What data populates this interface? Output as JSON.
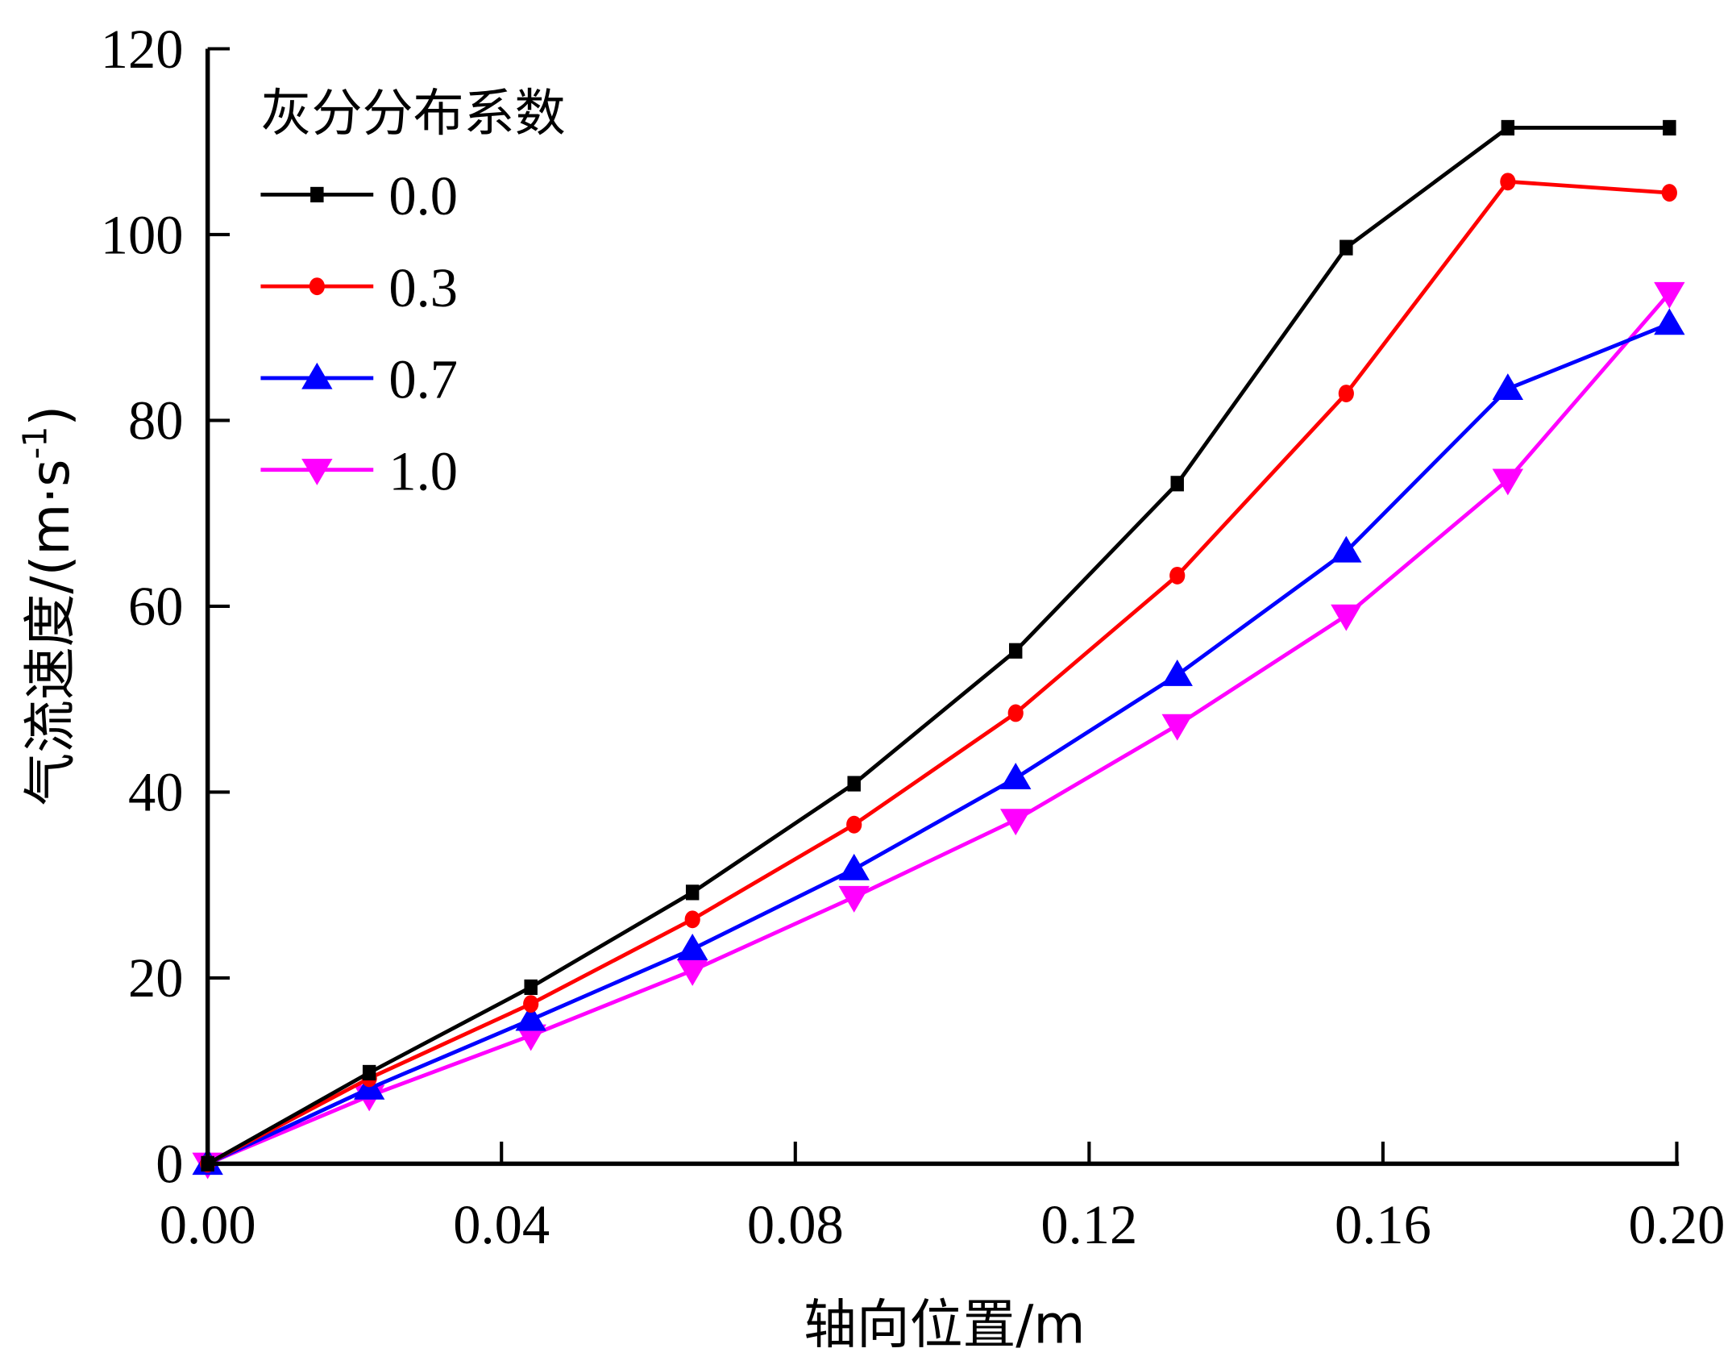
{
  "chart_data": {
    "type": "line",
    "title": "",
    "xlabel": "轴向位置/m",
    "ylabel_main": "气流速度/(m·s",
    "ylabel_sup": "-1",
    "ylabel_close": ")",
    "xlim": [
      0,
      0.2
    ],
    "ylim": [
      0,
      120
    ],
    "xticks": [
      "0.00",
      "0.04",
      "0.08",
      "0.12",
      "0.16",
      "0.20"
    ],
    "xtick_values": [
      0,
      0.04,
      0.08,
      0.12,
      0.16,
      0.2
    ],
    "yticks": [
      "0",
      "20",
      "40",
      "60",
      "80",
      "100",
      "120"
    ],
    "ytick_values": [
      0,
      20,
      40,
      60,
      80,
      100,
      120
    ],
    "grid": false,
    "legend": {
      "title": "灰分分布系数",
      "placement": "top-left"
    },
    "x": [
      0,
      0.022,
      0.044,
      0.066,
      0.088,
      0.11,
      0.132,
      0.155,
      0.177,
      0.199
    ],
    "series": [
      {
        "name": "0.0",
        "color": "#000000",
        "marker": "square",
        "values": [
          0,
          9.8,
          19.0,
          29.2,
          40.9,
          55.2,
          73.2,
          98.6,
          111.5,
          111.5
        ]
      },
      {
        "name": "0.3",
        "color": "#ff0000",
        "marker": "circle",
        "values": [
          0,
          9.2,
          17.2,
          26.3,
          36.5,
          48.5,
          63.3,
          82.9,
          105.7,
          104.5
        ]
      },
      {
        "name": "0.7",
        "color": "#0000ff",
        "marker": "triangle-up",
        "values": [
          0,
          8.1,
          15.5,
          23.1,
          31.7,
          41.5,
          52.6,
          65.9,
          83.4,
          90.4
        ]
      },
      {
        "name": "1.0",
        "color": "#ff00ff",
        "marker": "triangle-down",
        "values": [
          0,
          7.3,
          13.8,
          20.8,
          28.7,
          37.0,
          47.2,
          59.0,
          73.6,
          93.7
        ]
      }
    ]
  }
}
